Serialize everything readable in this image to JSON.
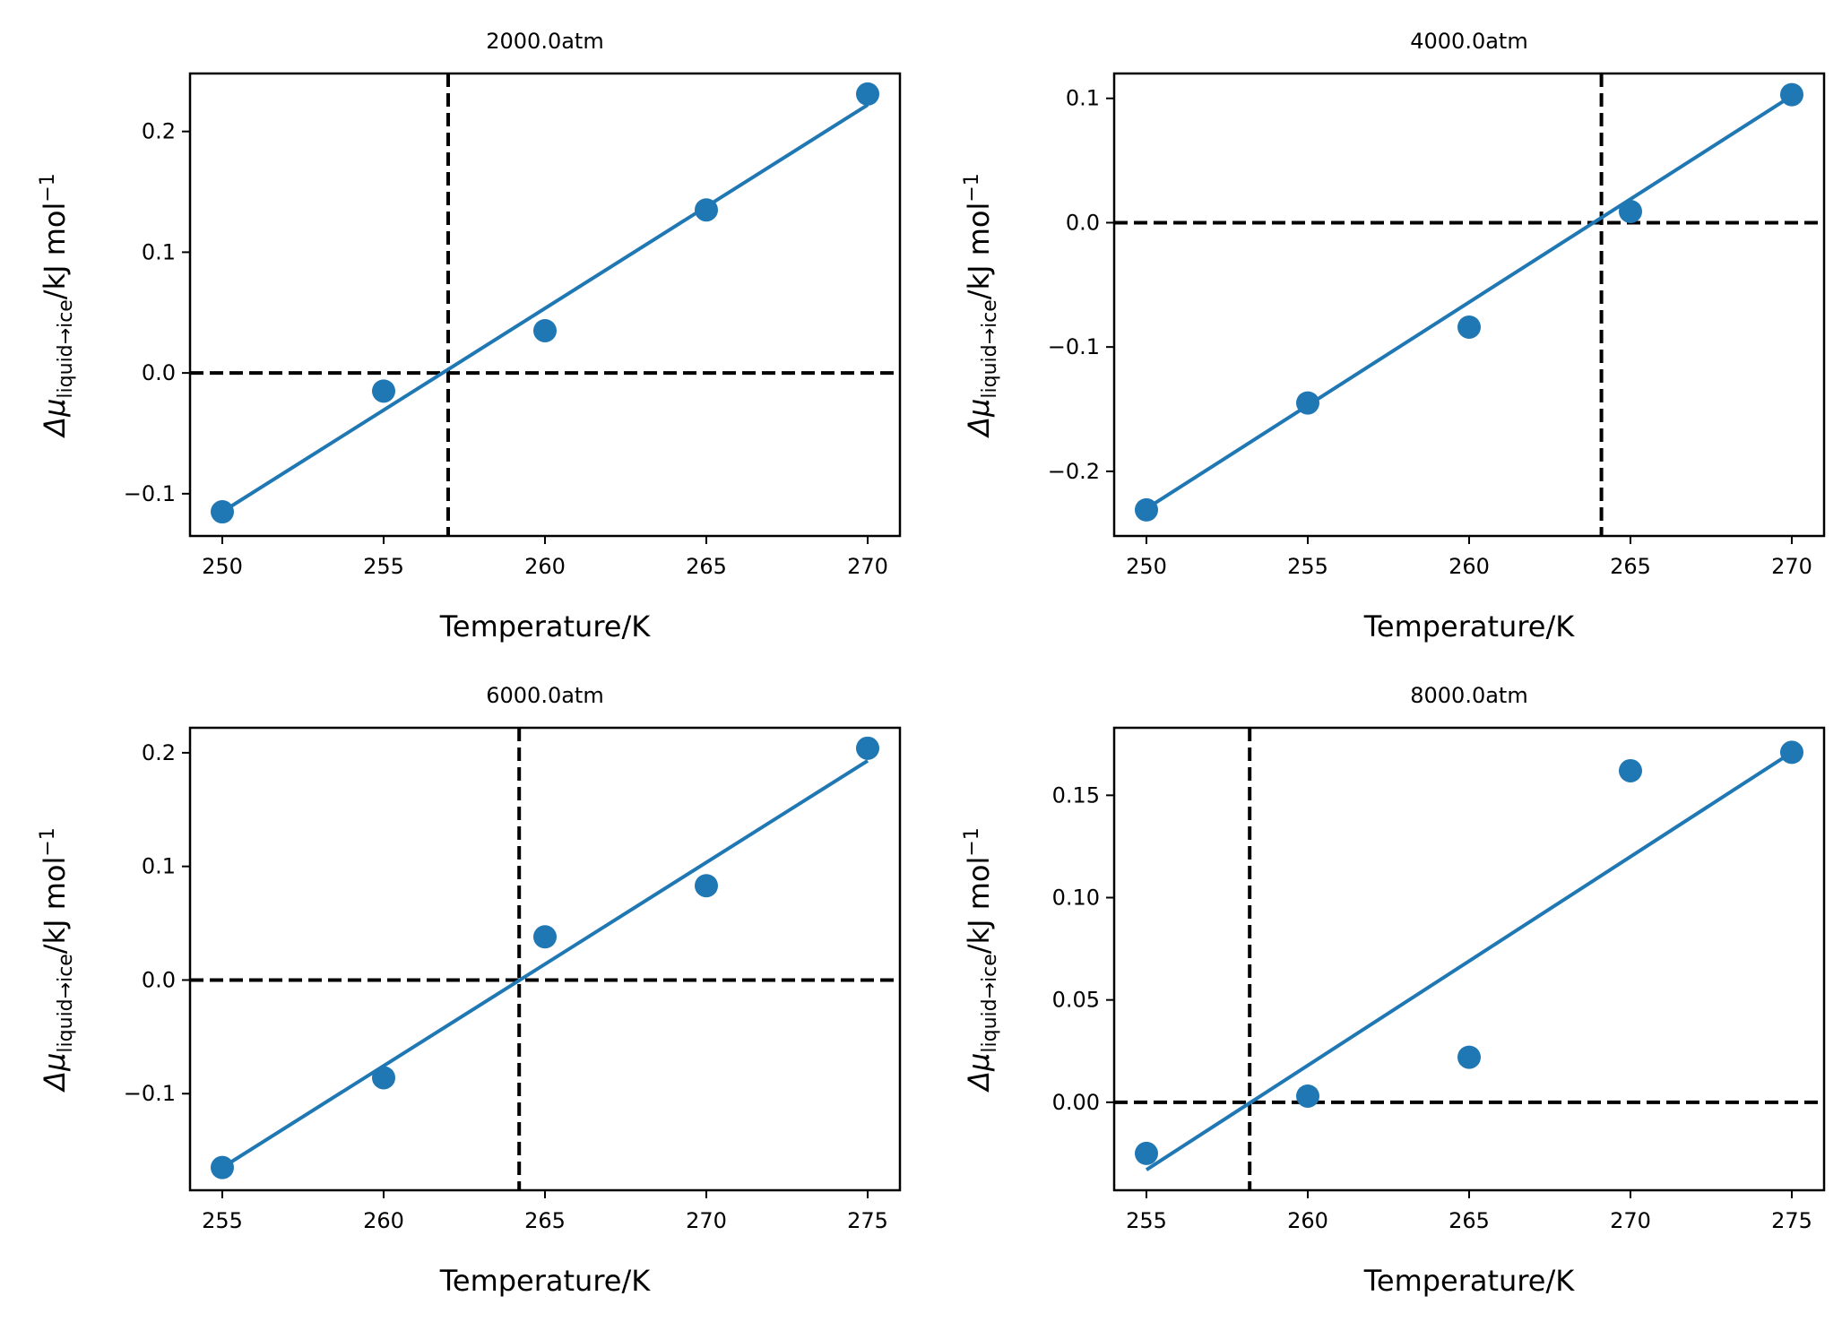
{
  "figure": {
    "colors": {
      "series": "#1f77b4",
      "reference": "#000000",
      "axes": "#000000",
      "background": "#ffffff"
    }
  },
  "chart_data": [
    {
      "type": "scatter",
      "title": "2000.0atm",
      "xlabel": "Temperature/K",
      "ylabel": {
        "main": "Δμ",
        "subscript": "liquid→ice",
        "unit": "/kJ mol",
        "exponent": "−1"
      },
      "xlim": [
        249,
        271
      ],
      "ylim": [
        -0.135,
        0.248
      ],
      "xticks": [
        250,
        255,
        260,
        265,
        270
      ],
      "yticks": [
        -0.1,
        0.0,
        0.1,
        0.2
      ],
      "ytick_labels": [
        "−0.1",
        "0.0",
        "0.1",
        "0.2"
      ],
      "points": {
        "x": [
          250,
          255,
          260,
          265,
          270
        ],
        "y": [
          -0.115,
          -0.015,
          0.035,
          0.135,
          0.231
        ]
      },
      "fit_line": {
        "x": [
          250,
          270
        ],
        "y": [
          -0.115,
          0.222
        ]
      },
      "crossing_temperature": 257.0,
      "zero_line": true,
      "grid": false
    },
    {
      "type": "scatter",
      "title": "4000.0atm",
      "xlabel": "Temperature/K",
      "ylabel": {
        "main": "Δμ",
        "subscript": "liquid→ice",
        "unit": "/kJ mol",
        "exponent": "−1"
      },
      "xlim": [
        249,
        271
      ],
      "ylim": [
        -0.252,
        0.12
      ],
      "xticks": [
        250,
        255,
        260,
        265,
        270
      ],
      "yticks": [
        -0.2,
        -0.1,
        0.0,
        0.1
      ],
      "ytick_labels": [
        "−0.2",
        "−0.1",
        "0.0",
        "0.1"
      ],
      "points": {
        "x": [
          250,
          255,
          260,
          265,
          270
        ],
        "y": [
          -0.231,
          -0.145,
          -0.084,
          0.009,
          0.103
        ]
      },
      "fit_line": {
        "x": [
          250,
          270
        ],
        "y": [
          -0.23,
          0.102
        ]
      },
      "crossing_temperature": 264.1,
      "zero_line": true,
      "grid": false
    },
    {
      "type": "scatter",
      "title": "6000.0atm",
      "xlabel": "Temperature/K",
      "ylabel": {
        "main": "Δμ",
        "subscript": "liquid→ice",
        "unit": "/kJ mol",
        "exponent": "−1"
      },
      "xlim": [
        254,
        276
      ],
      "ylim": [
        -0.185,
        0.222
      ],
      "xticks": [
        255,
        260,
        265,
        270,
        275
      ],
      "yticks": [
        -0.1,
        0.0,
        0.1,
        0.2
      ],
      "ytick_labels": [
        "−0.1",
        "0.0",
        "0.1",
        "0.2"
      ],
      "points": {
        "x": [
          255,
          260,
          265,
          270,
          275
        ],
        "y": [
          -0.165,
          -0.086,
          0.038,
          0.083,
          0.204
        ]
      },
      "fit_line": {
        "x": [
          255,
          275
        ],
        "y": [
          -0.165,
          0.193
        ]
      },
      "crossing_temperature": 264.2,
      "zero_line": true,
      "grid": false
    },
    {
      "type": "scatter",
      "title": "8000.0atm",
      "xlabel": "Temperature/K",
      "ylabel": {
        "main": "Δμ",
        "subscript": "liquid→ice",
        "unit": "/kJ mol",
        "exponent": "−1"
      },
      "xlim": [
        254,
        276
      ],
      "ylim": [
        -0.043,
        0.183
      ],
      "xticks": [
        255,
        260,
        265,
        270,
        275
      ],
      "yticks": [
        0.0,
        0.05,
        0.1,
        0.15
      ],
      "ytick_labels": [
        "0.00",
        "0.05",
        "0.10",
        "0.15"
      ],
      "points": {
        "x": [
          255,
          260,
          265,
          270,
          275
        ],
        "y": [
          -0.025,
          0.003,
          0.022,
          0.162,
          0.171
        ]
      },
      "fit_line": {
        "x": [
          255,
          275
        ],
        "y": [
          -0.033,
          0.171
        ]
      },
      "crossing_temperature": 258.2,
      "zero_line": true,
      "grid": false
    }
  ]
}
